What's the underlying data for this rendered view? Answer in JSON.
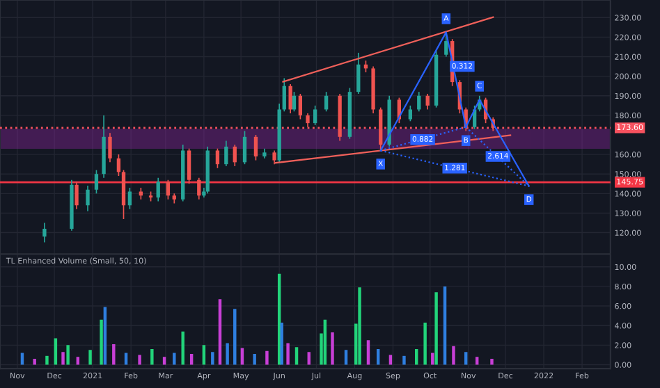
{
  "chart_data": [
    {
      "type": "candlestick",
      "x": [
        "2020-11-23",
        "2020-12-15",
        "2020-12-19",
        "2020-12-28",
        "2021-01-04",
        "2021-01-10",
        "2021-01-15",
        "2021-01-22",
        "2021-01-26",
        "2021-01-31",
        "2021-02-09",
        "2021-02-17",
        "2021-02-23",
        "2021-03-03",
        "2021-03-08",
        "2021-03-15",
        "2021-03-20",
        "2021-03-28",
        "2021-04-01",
        "2021-04-04",
        "2021-04-12",
        "2021-04-19",
        "2021-04-26",
        "2021-05-04",
        "2021-05-13",
        "2021-05-20",
        "2021-05-28",
        "2021-06-01",
        "2021-06-05",
        "2021-06-10",
        "2021-06-13",
        "2021-06-18",
        "2021-06-24",
        "2021-06-30",
        "2021-07-09",
        "2021-07-20",
        "2021-07-28",
        "2021-08-04",
        "2021-08-10",
        "2021-08-16",
        "2021-08-22",
        "2021-08-29",
        "2021-09-06",
        "2021-09-15",
        "2021-09-22",
        "2021-09-29",
        "2021-10-06",
        "2021-10-14",
        "2021-10-19",
        "2021-10-25",
        "2021-10-30",
        "2021-11-06",
        "2021-11-10",
        "2021-11-15",
        "2021-11-21"
      ],
      "ohlc": [
        [
          118,
          125,
          115,
          122
        ],
        [
          122,
          147,
          121,
          144.5
        ],
        [
          144.5,
          146,
          132,
          134
        ],
        [
          134,
          144,
          131,
          142
        ],
        [
          142,
          152,
          140,
          150
        ],
        [
          150,
          180,
          148,
          169
        ],
        [
          169,
          171,
          156,
          158
        ],
        [
          158,
          160,
          149,
          151
        ],
        [
          151,
          152,
          127,
          134
        ],
        [
          134,
          143,
          132,
          141
        ],
        [
          141,
          143,
          137,
          139
        ],
        [
          139,
          141,
          136,
          138
        ],
        [
          138,
          148,
          136,
          146
        ],
        [
          146,
          147,
          137,
          139
        ],
        [
          139,
          140,
          135,
          137
        ],
        [
          137,
          165,
          136,
          162
        ],
        [
          162,
          163,
          145,
          147
        ],
        [
          147,
          148,
          137,
          139
        ],
        [
          139,
          143,
          138,
          141
        ],
        [
          141,
          164,
          140,
          162
        ],
        [
          162,
          163,
          153,
          155
        ],
        [
          155,
          167,
          154,
          164
        ],
        [
          164,
          165,
          154,
          156
        ],
        [
          156,
          172,
          155,
          169
        ],
        [
          169,
          170,
          157,
          159
        ],
        [
          159,
          163,
          158,
          161
        ],
        [
          161,
          162,
          155,
          157
        ],
        [
          157,
          186,
          156,
          183
        ],
        [
          183,
          199,
          182,
          195
        ],
        [
          195,
          196,
          181,
          183
        ],
        [
          183,
          192,
          182,
          190
        ],
        [
          190,
          191,
          178,
          180
        ],
        [
          180,
          181,
          174,
          176
        ],
        [
          176,
          185,
          175,
          183
        ],
        [
          183,
          192,
          182,
          190
        ],
        [
          190,
          191,
          167,
          169
        ],
        [
          169,
          194,
          168,
          192
        ],
        [
          192,
          212,
          191,
          206
        ],
        [
          206,
          208,
          202,
          204
        ],
        [
          204,
          205,
          181,
          183
        ],
        [
          183,
          184,
          162,
          165
        ],
        [
          165,
          190,
          164,
          188
        ],
        [
          188,
          189,
          176,
          178
        ],
        [
          178,
          185,
          177,
          183
        ],
        [
          183,
          192,
          182,
          190
        ],
        [
          190,
          191,
          183,
          185
        ],
        [
          185,
          213,
          184,
          211
        ],
        [
          211,
          222.5,
          210,
          218
        ],
        [
          218,
          219,
          195,
          197
        ],
        [
          197,
          198,
          181,
          183
        ],
        [
          183,
          184,
          172,
          174
        ],
        [
          174,
          185,
          173,
          183
        ],
        [
          183,
          190,
          182,
          188
        ],
        [
          188,
          189,
          176,
          178
        ],
        [
          178,
          179,
          172,
          173.6
        ]
      ],
      "series": [
        {
          "type": "line",
          "x": [
            "2021-06-04",
            "2021-11-21"
          ],
          "values": [
            197.2,
            230.2
          ],
          "color": "#f0605a"
        },
        {
          "type": "line",
          "x": [
            "2021-05-29",
            "2021-12-05"
          ],
          "values": [
            155.7,
            169.8
          ],
          "color": "#f0605a"
        },
        {
          "type": "line",
          "x": [
            "2021-08-22",
            "2021-10-14",
            "2021-10-30",
            "2021-11-10",
            "2021-12-20"
          ],
          "values": [
            162,
            222.5,
            174,
            188,
            143.8
          ],
          "color": "#2962ff",
          "marker": "none"
        },
        {
          "type": "line",
          "x": [
            "2021-08-22",
            "2021-10-30"
          ],
          "values": [
            162,
            174
          ],
          "color": "#2962ff",
          "line_style": "dotted"
        },
        {
          "type": "line",
          "x": [
            "2021-08-22",
            "2021-12-20"
          ],
          "values": [
            162,
            143.8
          ],
          "color": "#2962ff",
          "line_style": "dotted"
        },
        {
          "type": "line",
          "x": [
            "2021-10-30",
            "2021-12-20"
          ],
          "values": [
            174,
            143.8
          ],
          "color": "#2962ff",
          "line_style": "dotted"
        }
      ],
      "ref_lines": [
        {
          "axis": "y",
          "value": 145.75,
          "label": "145.75",
          "color": "#f23645",
          "line_style": "solid"
        },
        {
          "axis": "y",
          "value": 173.6,
          "label": "173.60",
          "color": "#f7525f",
          "line_style": "dotted"
        }
      ],
      "bands": [
        {
          "axis": "y",
          "from": 163.4,
          "to": 172.6,
          "color": "#9c27b0"
        }
      ],
      "annotations": [
        {
          "text": "X",
          "x": "2021-08-22",
          "y": 162
        },
        {
          "text": "A",
          "x": "2021-10-14",
          "y": 222.5
        },
        {
          "text": "B",
          "x": "2021-10-30",
          "y": 174
        },
        {
          "text": "C",
          "x": "2021-11-10",
          "y": 188
        },
        {
          "text": "D",
          "x": "2021-12-20",
          "y": 143.8
        },
        {
          "text": "0.312",
          "x": "2021-10-27",
          "y": 205
        },
        {
          "text": "0.882",
          "x": "2021-09-25",
          "y": 167.6
        },
        {
          "text": "2.614",
          "x": "2021-11-25",
          "y": 159
        },
        {
          "text": "1.281",
          "x": "2021-10-21",
          "y": 153
        }
      ],
      "xlim": [
        "2020-10-18",
        "2022-02-24"
      ],
      "ylim": [
        109,
        239
      ],
      "yticks": [
        {
          "value": 120,
          "label": "120.00"
        },
        {
          "value": 130,
          "label": "130.00"
        },
        {
          "value": 140,
          "label": "140.00"
        },
        {
          "value": 150,
          "label": "150.00"
        },
        {
          "value": 160,
          "label": "160.00"
        },
        {
          "value": 180,
          "label": "180.00"
        },
        {
          "value": 190,
          "label": "190.00"
        },
        {
          "value": 200,
          "label": "200.00"
        },
        {
          "value": 210,
          "label": "210.00"
        },
        {
          "value": 220,
          "label": "220.00"
        },
        {
          "value": 230,
          "label": "230.00"
        }
      ],
      "grid": true,
      "tick_labels": "y"
    },
    {
      "type": "bar",
      "title": "TL Enhanced Volume (Small, 50, 10)",
      "x": [
        "2020-11-05",
        "2020-11-15",
        "2020-11-25",
        "2020-12-02",
        "2020-12-08",
        "2020-12-12",
        "2020-12-20",
        "2020-12-30",
        "2021-01-08",
        "2021-01-11",
        "2021-01-18",
        "2021-01-28",
        "2021-02-08",
        "2021-02-18",
        "2021-02-28",
        "2021-03-08",
        "2021-03-15",
        "2021-03-22",
        "2021-04-01",
        "2021-04-08",
        "2021-04-14",
        "2021-04-20",
        "2021-04-26",
        "2021-05-02",
        "2021-05-12",
        "2021-05-22",
        "2021-06-01",
        "2021-06-03",
        "2021-06-08",
        "2021-06-15",
        "2021-06-25",
        "2021-07-05",
        "2021-07-08",
        "2021-07-14",
        "2021-07-25",
        "2021-08-02",
        "2021-08-05",
        "2021-08-12",
        "2021-08-20",
        "2021-08-30",
        "2021-09-10",
        "2021-09-20",
        "2021-09-27",
        "2021-10-03",
        "2021-10-06",
        "2021-10-13",
        "2021-10-20",
        "2021-10-30",
        "2021-11-08",
        "2021-11-20"
      ],
      "values": [
        1.2,
        0.6,
        0.9,
        2.7,
        1.3,
        2.0,
        0.8,
        1.5,
        4.6,
        5.9,
        2.1,
        1.2,
        1.0,
        1.6,
        0.8,
        1.2,
        3.4,
        1.1,
        2.0,
        1.3,
        6.7,
        2.2,
        5.7,
        1.7,
        1.1,
        1.4,
        9.3,
        4.3,
        2.2,
        1.8,
        1.3,
        3.2,
        4.6,
        3.3,
        1.5,
        4.2,
        7.9,
        2.5,
        1.6,
        1.0,
        0.9,
        1.6,
        4.3,
        1.2,
        7.4,
        8.0,
        1.9,
        1.3,
        0.8,
        0.6
      ],
      "colors": [
        "#2f7fe0",
        "#c83fd6",
        "#22d47a",
        "#22d47a",
        "#c83fd6",
        "#22d47a",
        "#c83fd6",
        "#22d47a",
        "#22d47a",
        "#2f7fe0",
        "#c83fd6",
        "#2f7fe0",
        "#c83fd6",
        "#22d47a",
        "#c83fd6",
        "#2f7fe0",
        "#22d47a",
        "#c83fd6",
        "#22d47a",
        "#2f7fe0",
        "#c83fd6",
        "#2f7fe0",
        "#2f7fe0",
        "#c83fd6",
        "#2f7fe0",
        "#c83fd6",
        "#22d47a",
        "#2f7fe0",
        "#c83fd6",
        "#22d47a",
        "#c83fd6",
        "#22d47a",
        "#22d47a",
        "#c83fd6",
        "#2f7fe0",
        "#22d47a",
        "#22d47a",
        "#c83fd6",
        "#2f7fe0",
        "#c83fd6",
        "#2f7fe0",
        "#22d47a",
        "#22d47a",
        "#c83fd6",
        "#22d47a",
        "#2f7fe0",
        "#c83fd6",
        "#2f7fe0",
        "#c83fd6",
        "#c83fd6"
      ],
      "xlim": [
        "2020-10-18",
        "2022-02-24"
      ],
      "xticks": [
        {
          "value": "2020-11-01",
          "label": "Nov"
        },
        {
          "value": "2020-12-01",
          "label": "Dec"
        },
        {
          "value": "2021-01-01",
          "label": "2021"
        },
        {
          "value": "2021-02-01",
          "label": "Feb"
        },
        {
          "value": "2021-03-01",
          "label": "Mar"
        },
        {
          "value": "2021-04-01",
          "label": "Apr"
        },
        {
          "value": "2021-05-01",
          "label": "May"
        },
        {
          "value": "2021-06-01",
          "label": "Jun"
        },
        {
          "value": "2021-07-01",
          "label": "Jul"
        },
        {
          "value": "2021-08-01",
          "label": "Aug"
        },
        {
          "value": "2021-09-01",
          "label": "Sep"
        },
        {
          "value": "2021-10-01",
          "label": "Oct"
        },
        {
          "value": "2021-11-01",
          "label": "Nov"
        },
        {
          "value": "2021-12-01",
          "label": "Dec"
        },
        {
          "value": "2022-01-01",
          "label": "2022"
        },
        {
          "value": "2022-02-01",
          "label": "Feb"
        }
      ],
      "ylim": [
        -0.4,
        11.3
      ],
      "yticks": [
        {
          "value": 0,
          "label": "0.00"
        },
        {
          "value": 2,
          "label": "2.00"
        },
        {
          "value": 4,
          "label": "4.00"
        },
        {
          "value": 6,
          "label": "6.00"
        },
        {
          "value": 8,
          "label": "8.00"
        },
        {
          "value": 10,
          "label": "10.00"
        }
      ],
      "grid": true
    }
  ]
}
